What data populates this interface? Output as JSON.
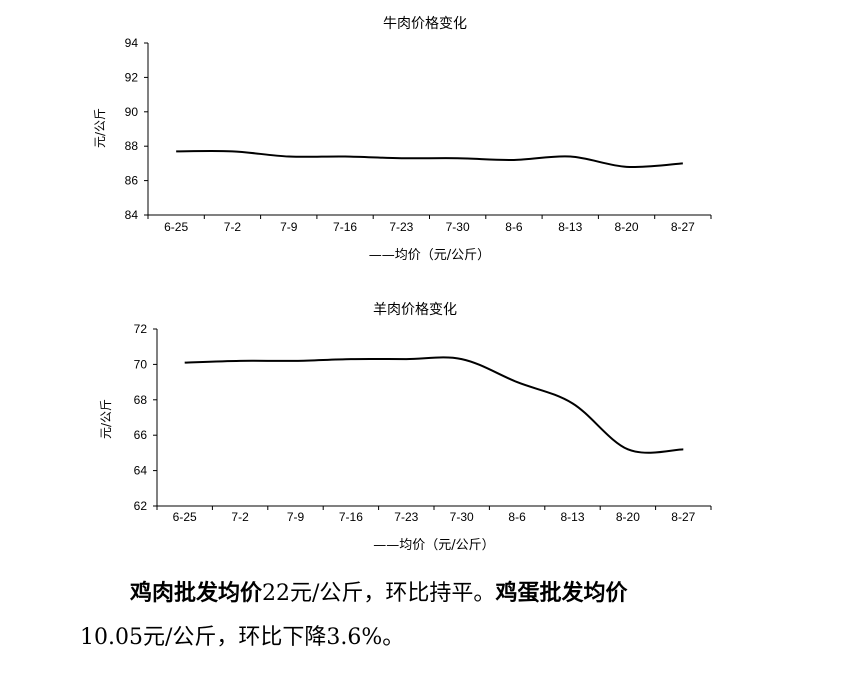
{
  "chart_data": [
    {
      "type": "line",
      "title": "牛肉价格变化",
      "ylabel": "元/公斤",
      "categories": [
        "6-25",
        "7-2",
        "7-9",
        "7-16",
        "7-23",
        "7-30",
        "8-6",
        "8-13",
        "8-20",
        "8-27"
      ],
      "series": [
        {
          "name": "——均价（元/公斤）",
          "values": [
            87.7,
            87.7,
            87.4,
            87.4,
            87.3,
            87.3,
            87.2,
            87.4,
            86.8,
            87.0
          ]
        }
      ],
      "ylim": [
        84,
        94
      ],
      "yticks": [
        84,
        86,
        88,
        90,
        92,
        94
      ],
      "grid": false,
      "legend": "bottom"
    },
    {
      "type": "line",
      "title": "羊肉价格变化",
      "ylabel": "元/公斤",
      "categories": [
        "6-25",
        "7-2",
        "7-9",
        "7-16",
        "7-23",
        "7-30",
        "8-6",
        "8-13",
        "8-20",
        "8-27"
      ],
      "series": [
        {
          "name": "——均价（元/公斤）",
          "values": [
            70.1,
            70.2,
            70.2,
            70.3,
            70.3,
            70.3,
            69.0,
            67.8,
            65.2,
            65.2
          ]
        }
      ],
      "ylim": [
        62,
        72
      ],
      "yticks": [
        62,
        64,
        66,
        68,
        70,
        72
      ],
      "grid": false,
      "legend": "bottom"
    }
  ],
  "paragraph": {
    "line1_bold1": "鸡肉批发均价",
    "line1_text1": "22元/公斤，环比持平。",
    "line1_bold2": "鸡蛋批发均价",
    "line2_text": "10.05元/公斤，环比下降3.6%。"
  }
}
